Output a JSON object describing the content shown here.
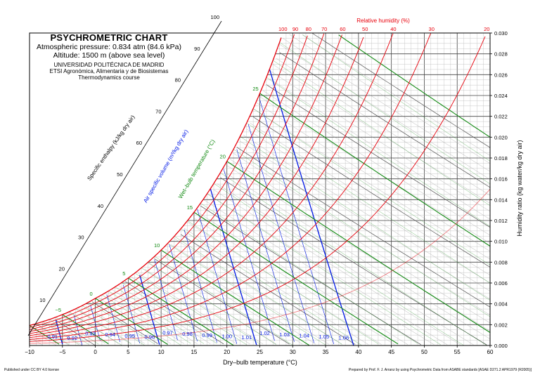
{
  "header": {
    "title": "PSYCHROMETRIC CHART",
    "pressure": "Atmospheric pressure: 0.834 atm (84.6 kPa)",
    "altitude": "Altitude: 1500 m (above sea level)",
    "university": "UNIVERSIDAD POLITÉCNICA DE MADRID",
    "school": "ETSI Agronómica, Alimentaria y de Biosistemas",
    "course": "Thermodynamics course"
  },
  "footer": {
    "license": "Published under CC BY 4.0 license",
    "credit": "Prepared by Prof. F. J. Arranz by using Psychrometric Data from ASABE standards [ASAE D271.2 APR1979 (R2005)]"
  },
  "chart_data": {
    "type": "line",
    "xlabel": "Dry–bulb temperature (°C)",
    "ylabel": "Humidity ratio (kg water/kg dry air)",
    "xlim": [
      -10,
      60
    ],
    "ylim": [
      0,
      0.03
    ],
    "x_ticks": [
      "−10",
      "−5",
      "0",
      "5",
      "10",
      "15",
      "20",
      "25",
      "30",
      "35",
      "40",
      "45",
      "50",
      "55",
      "60"
    ],
    "y_ticks": [
      "0.000",
      "0.002",
      "0.004",
      "0.006",
      "0.008",
      "0.010",
      "0.012",
      "0.014",
      "0.016",
      "0.018",
      "0.020",
      "0.022",
      "0.024",
      "0.026",
      "0.028",
      "0.030"
    ],
    "pressure_kpa": 84.6,
    "relative_humidity": {
      "label": "Relative humidity (%)",
      "values": [
        100,
        90,
        80,
        70,
        60,
        50,
        40,
        30,
        20
      ],
      "color": "#e8000b"
    },
    "specific_volume": {
      "label": "Air specific volume (m³/kg dry air)",
      "values": [
        "0.91",
        "0.92",
        "0.93",
        "0.94",
        "0.95",
        "0.96",
        "0.97",
        "0.98",
        "0.99",
        "1.00",
        "1.01",
        "1.02",
        "1.03",
        "1.04",
        "1.05",
        "1.06"
      ],
      "color": "#0018e6"
    },
    "wet_bulb": {
      "label": "Wet–bulb temperature (°C)",
      "values": [
        "−5",
        "0",
        "5",
        "10",
        "15",
        "20",
        "25"
      ],
      "color": "#138a13"
    },
    "enthalpy": {
      "label": "Specific enthalpy (kJ/kg dry air)",
      "values": [
        "10",
        "20",
        "30",
        "40",
        "50",
        "60",
        "70",
        "80",
        "90",
        "100"
      ]
    }
  }
}
